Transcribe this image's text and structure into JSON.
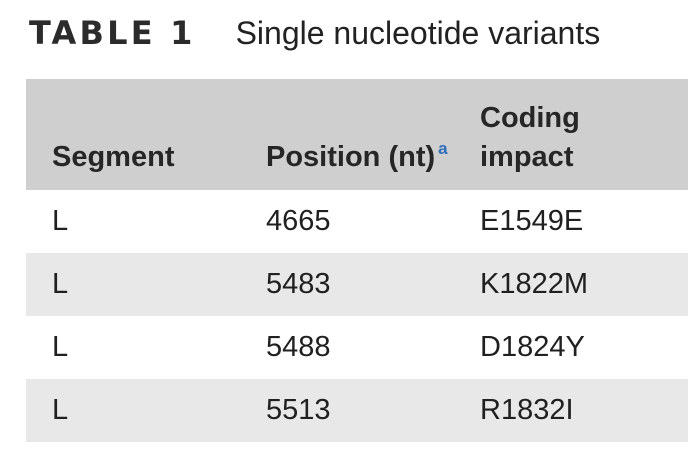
{
  "caption": {
    "label": "TABLE 1",
    "title": "Single nucleotide variants"
  },
  "table": {
    "columns": [
      {
        "label": "Segment"
      },
      {
        "label": "Position (nt)",
        "footnote_marker": "a"
      },
      {
        "label_lines": [
          "Coding",
          "impact"
        ]
      }
    ],
    "rows": [
      {
        "segment": "L",
        "position": "4665",
        "coding_impact": "E1549E"
      },
      {
        "segment": "L",
        "position": "5483",
        "coding_impact": "K1822M"
      },
      {
        "segment": "L",
        "position": "5488",
        "coding_impact": "D1824Y"
      },
      {
        "segment": "L",
        "position": "5513",
        "coding_impact": "R1832I"
      }
    ]
  },
  "colors": {
    "header_bg": "#cfcfcf",
    "stripe_bg": "#e8e8e8",
    "footnote_link": "#2e6dbb"
  }
}
